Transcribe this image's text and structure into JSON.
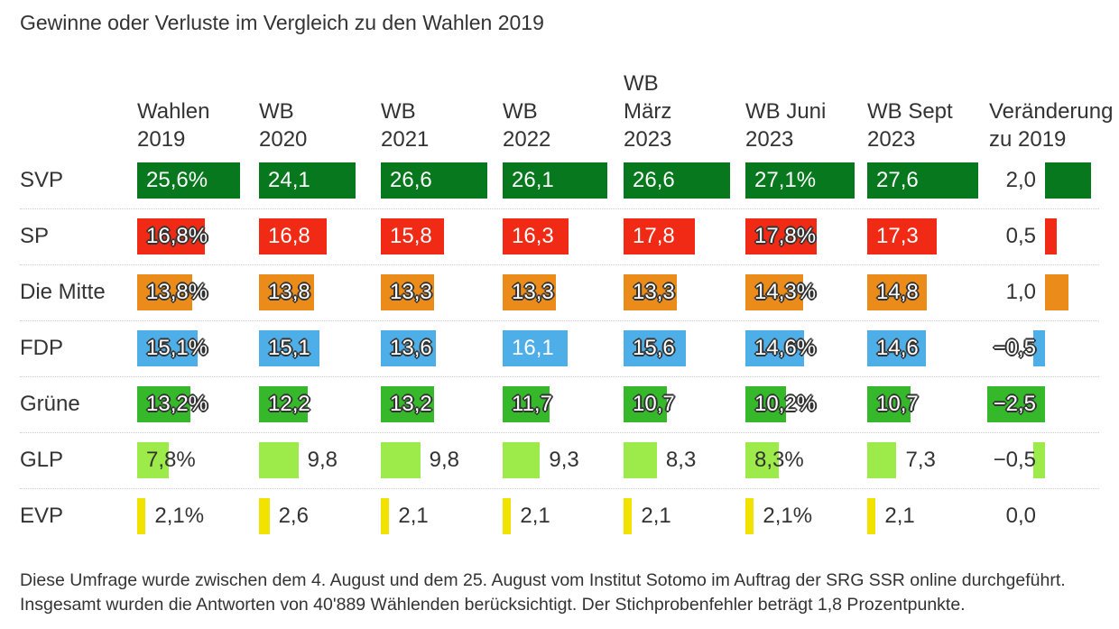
{
  "title": "Gewinne oder Verluste im Vergleich zu den Wahlen 2019",
  "chart_data": {
    "type": "table",
    "columns": [
      "Wahlen\n2019",
      "WB\n2020",
      "WB\n2021",
      "WB\n2022",
      "WB\nMärz\n2023",
      "WB Juni\n2023",
      "WB Sept\n2023",
      "Veränderung\nzu 2019"
    ],
    "rows": [
      {
        "party": "SVP",
        "color": "#08781e",
        "values": [
          25.6,
          24.1,
          26.6,
          26.1,
          26.6,
          27.1,
          27.6
        ],
        "labels": [
          "25,6%",
          "24,1",
          "26,6",
          "26,1",
          "26,6",
          "27,1%",
          "27,6"
        ],
        "change": 2.0,
        "change_label": "2,0"
      },
      {
        "party": "SP",
        "color": "#f02a14",
        "values": [
          16.8,
          16.8,
          15.8,
          16.3,
          17.8,
          17.8,
          17.3
        ],
        "labels": [
          "16,8%",
          "16,8",
          "15,8",
          "16,3",
          "17,8",
          "17,8%",
          "17,3"
        ],
        "change": 0.5,
        "change_label": "0,5"
      },
      {
        "party": "Die Mitte",
        "color": "#eb8c1a",
        "values": [
          13.8,
          13.8,
          13.3,
          13.3,
          13.3,
          14.3,
          14.8
        ],
        "labels": [
          "13,8%",
          "13,8",
          "13,3",
          "13,3",
          "13,3",
          "14,3%",
          "14,8"
        ],
        "change": 1.0,
        "change_label": "1,0"
      },
      {
        "party": "FDP",
        "color": "#4daee8",
        "values": [
          15.1,
          15.1,
          13.6,
          16.1,
          15.6,
          14.6,
          14.6
        ],
        "labels": [
          "15,1%",
          "15,1",
          "13,6",
          "16,1",
          "15,6",
          "14,6%",
          "14,6"
        ],
        "change": -0.5,
        "change_label": "−0,5"
      },
      {
        "party": "Grüne",
        "color": "#35b82a",
        "values": [
          13.2,
          12.2,
          13.2,
          11.7,
          10.7,
          10.2,
          10.7
        ],
        "labels": [
          "13,2%",
          "12,2",
          "13,2",
          "11,7",
          "10,7",
          "10,2%",
          "10,7"
        ],
        "change": -2.5,
        "change_label": "−2,5"
      },
      {
        "party": "GLP",
        "color": "#9deb4b",
        "values": [
          7.8,
          9.8,
          9.8,
          9.3,
          8.3,
          8.3,
          7.3
        ],
        "labels": [
          "7,8%",
          "9,8",
          "9,8",
          "9,3",
          "8,3",
          "8,3%",
          "7,3"
        ],
        "change": -0.5,
        "change_label": "−0,5"
      },
      {
        "party": "EVP",
        "color": "#f2e200",
        "values": [
          2.1,
          2.6,
          2.1,
          2.1,
          2.1,
          2.1,
          2.1
        ],
        "labels": [
          "2,1%",
          "2,6",
          "2,1",
          "2,1",
          "2,1",
          "2,1%",
          "2,1"
        ],
        "change": 0.0,
        "change_label": "0,0"
      }
    ]
  },
  "note": "Diese Umfrage wurde zwischen dem 4. August und dem 25. August vom Institut Sotomo im Auftrag der SRG SSR online durchgeführt. Insgesamt wurden die Antworten von 40'889 Wählenden berücksichtigt. Der Stichprobenfehler beträgt 1,8 Prozentpunkte."
}
